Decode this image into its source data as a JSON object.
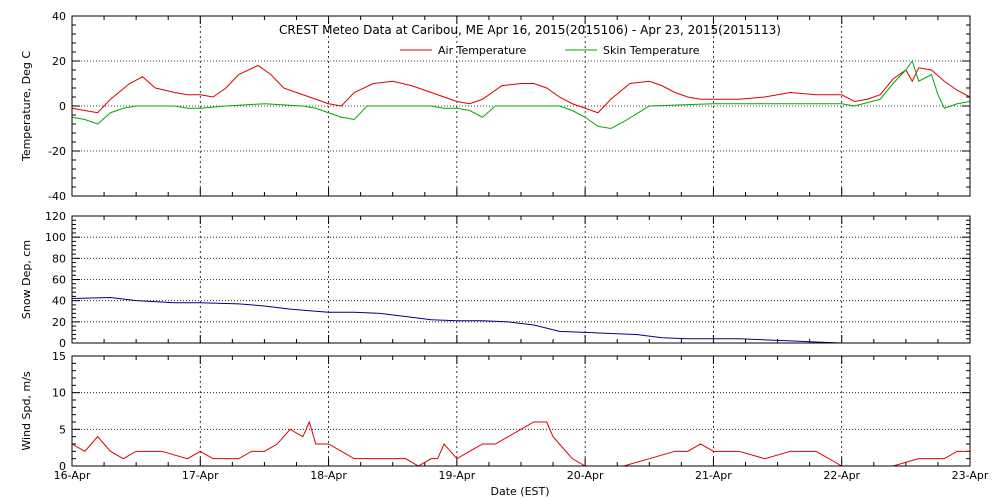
{
  "chart_data": {
    "type": "line",
    "title": "CREST Meteo Data at Caribou, ME   Apr 16, 2015(2015106) - Apr 23, 2015(2015113)",
    "xlabel": "Date (EST)",
    "x_ticks": [
      "16-Apr",
      "17-Apr",
      "18-Apr",
      "19-Apr",
      "20-Apr",
      "21-Apr",
      "22-Apr",
      "23-Apr"
    ],
    "xlim": [
      0,
      7
    ],
    "legend_position": "top-center",
    "panels": [
      {
        "ylabel": "Temperature, Deg C",
        "ylim": [
          -40,
          40
        ],
        "yticks": [
          -40,
          -20,
          0,
          20,
          40
        ],
        "grid": true,
        "series": [
          {
            "name": "Air Temperature",
            "color": "#dd0000",
            "x": [
              0,
              0.1,
              0.2,
              0.3,
              0.45,
              0.55,
              0.65,
              0.8,
              0.9,
              1.0,
              1.1,
              1.2,
              1.3,
              1.45,
              1.55,
              1.65,
              1.8,
              1.9,
              2.0,
              2.1,
              2.2,
              2.35,
              2.5,
              2.65,
              2.75,
              2.9,
              3.0,
              3.1,
              3.2,
              3.35,
              3.5,
              3.6,
              3.7,
              3.8,
              3.9,
              4.0,
              4.1,
              4.2,
              4.35,
              4.5,
              4.6,
              4.7,
              4.8,
              4.9,
              5.0,
              5.2,
              5.4,
              5.6,
              5.8,
              6.0,
              6.1,
              6.2,
              6.3,
              6.4,
              6.5,
              6.55,
              6.6,
              6.7,
              6.8,
              6.9,
              7.0
            ],
            "y": [
              -1,
              -2,
              -3,
              3,
              10,
              13,
              8,
              6,
              5,
              5,
              4,
              8,
              14,
              18,
              14,
              8,
              5,
              3,
              1,
              0,
              6,
              10,
              11,
              9,
              7,
              4,
              2,
              1,
              3,
              9,
              10,
              10,
              8,
              4,
              1,
              -1,
              -3,
              3,
              10,
              11,
              9,
              6,
              4,
              3,
              3,
              3,
              4,
              6,
              5,
              5,
              2,
              3,
              5,
              12,
              16,
              11,
              17,
              16,
              11,
              7,
              4
            ]
          },
          {
            "name": "Skin Temperature",
            "color": "#00aa00",
            "x": [
              0,
              0.1,
              0.2,
              0.3,
              0.4,
              0.5,
              0.8,
              0.9,
              1.0,
              1.2,
              1.5,
              1.8,
              1.9,
              2.0,
              2.1,
              2.2,
              2.3,
              2.5,
              2.8,
              2.9,
              3.0,
              3.1,
              3.2,
              3.3,
              3.5,
              3.8,
              3.9,
              4.0,
              4.1,
              4.2,
              4.3,
              4.5,
              5.0,
              5.5,
              6.0,
              6.1,
              6.3,
              6.4,
              6.5,
              6.55,
              6.6,
              6.7,
              6.75,
              6.8,
              6.9,
              7.0
            ],
            "y": [
              -5,
              -6,
              -8,
              -3,
              -1,
              0,
              0,
              -1,
              -1,
              0,
              1,
              0,
              -1,
              -3,
              -5,
              -6,
              0,
              0,
              0,
              -1,
              -1,
              -2,
              -5,
              0,
              0,
              0,
              -2,
              -5,
              -9,
              -10,
              -7,
              0,
              1,
              1,
              1,
              0,
              3,
              10,
              16,
              20,
              11,
              14,
              5,
              -1,
              1,
              2
            ]
          }
        ]
      },
      {
        "ylabel": "Snow Dep, cm",
        "ylim": [
          0,
          120
        ],
        "yticks": [
          0,
          20,
          40,
          60,
          80,
          100,
          120
        ],
        "grid": true,
        "series": [
          {
            "name": "",
            "color": "#00008b",
            "x": [
              0,
              0.3,
              0.5,
              0.8,
              1.0,
              1.3,
              1.5,
              1.7,
              1.9,
              2.0,
              2.2,
              2.4,
              2.6,
              2.8,
              3.0,
              3.2,
              3.4,
              3.6,
              3.8,
              4.0,
              4.2,
              4.4,
              4.6,
              4.8,
              5.0,
              5.2,
              5.4,
              5.6,
              5.8,
              6.0,
              6.5,
              7.0
            ],
            "y": [
              42,
              43,
              40,
              38,
              38,
              37,
              35,
              32,
              30,
              29,
              29,
              28,
              25,
              22,
              21,
              21,
              20,
              17,
              11,
              10,
              9,
              8,
              5,
              4,
              4,
              4,
              3,
              2,
              1,
              0,
              0,
              0
            ]
          }
        ]
      },
      {
        "ylabel": "Wind Spd, m/s",
        "ylim": [
          0,
          15
        ],
        "yticks": [
          0,
          5,
          10,
          15
        ],
        "grid": true,
        "series": [
          {
            "name": "",
            "color": "#dd0000",
            "x": [
              0,
              0.1,
              0.2,
              0.3,
              0.4,
              0.5,
              0.7,
              0.9,
              1.0,
              1.1,
              1.2,
              1.3,
              1.4,
              1.5,
              1.6,
              1.7,
              1.8,
              1.85,
              1.9,
              2.0,
              2.1,
              2.2,
              2.3,
              2.4,
              2.5,
              2.6,
              2.7,
              2.8,
              2.85,
              2.9,
              3.0,
              3.1,
              3.2,
              3.3,
              3.4,
              3.5,
              3.6,
              3.7,
              3.75,
              3.8,
              3.9,
              4.0,
              4.1,
              4.3,
              4.5,
              4.7,
              4.8,
              4.9,
              5.0,
              5.2,
              5.4,
              5.6,
              5.8,
              6.0,
              6.2,
              6.4,
              6.6,
              6.8,
              6.9,
              7.0
            ],
            "y": [
              3,
              2,
              4,
              2,
              1,
              2,
              2,
              1,
              2,
              1,
              1,
              1,
              2,
              2,
              3,
              5,
              4,
              6,
              3,
              3,
              2,
              1,
              1,
              1,
              1,
              1,
              0,
              1,
              1,
              3,
              1,
              2,
              3,
              3,
              4,
              5,
              6,
              6,
              4,
              3,
              1,
              0,
              0,
              0,
              1,
              2,
              2,
              3,
              2,
              2,
              1,
              2,
              2,
              0,
              0,
              0,
              1,
              1,
              2,
              2
            ]
          }
        ]
      }
    ]
  }
}
